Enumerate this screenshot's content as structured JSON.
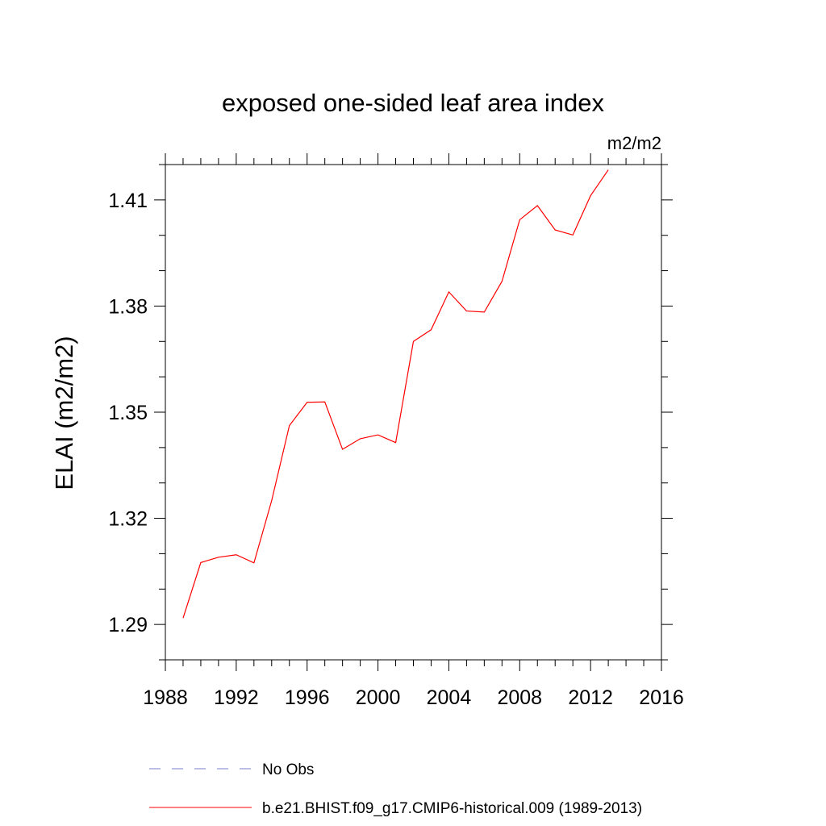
{
  "chart_data": {
    "type": "line",
    "title": "exposed one-sided leaf area index",
    "units_label": "m2/m2",
    "ylabel": "ELAI  (m2/m2)",
    "xlabel": "",
    "xlim": [
      1988,
      2016
    ],
    "ylim": [
      1.28,
      1.42
    ],
    "xticks": [
      1988,
      1992,
      1996,
      2000,
      2004,
      2008,
      2012,
      2016
    ],
    "yticks": [
      1.29,
      1.32,
      1.35,
      1.38,
      1.41
    ],
    "grid": false,
    "legend_position": "bottom",
    "series": [
      {
        "name": "b.e21.BHIST.f09_g17.CMIP6-historical.009 (1989-2013)",
        "color": "#ff0000",
        "style": "solid",
        "x": [
          1989,
          1990,
          1991,
          1992,
          1993,
          1994,
          1995,
          1996,
          1997,
          1998,
          1999,
          2000,
          2001,
          2002,
          2003,
          2004,
          2005,
          2006,
          2007,
          2008,
          2009,
          2010,
          2011,
          2012,
          2013
        ],
        "y": [
          1.2918,
          1.3075,
          1.309,
          1.3097,
          1.3074,
          1.325,
          1.3462,
          1.3528,
          1.3529,
          1.3395,
          1.3425,
          1.3436,
          1.3414,
          1.37,
          1.3733,
          1.384,
          1.3786,
          1.3783,
          1.387,
          1.4044,
          1.4084,
          1.4015,
          1.4001,
          1.4112,
          1.4185
        ]
      },
      {
        "name": "No Obs",
        "color": "#7b7bd6",
        "style": "dashed",
        "x": [],
        "y": []
      }
    ]
  }
}
